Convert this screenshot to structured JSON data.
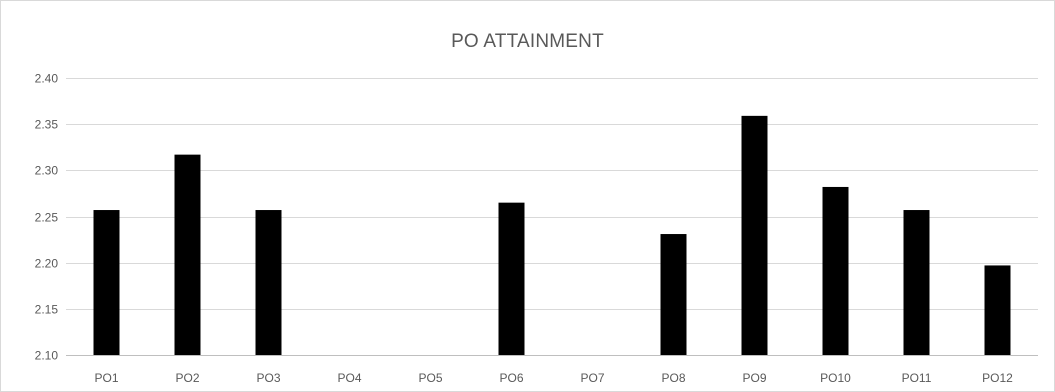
{
  "chart_data": {
    "type": "bar",
    "title": "PO ATTAINMENT",
    "xlabel": "",
    "ylabel": "",
    "categories": [
      "PO1",
      "PO2",
      "PO3",
      "PO4",
      "PO5",
      "PO6",
      "PO7",
      "PO8",
      "PO9",
      "PO10",
      "PO11",
      "PO12"
    ],
    "values": [
      2.257,
      2.317,
      2.257,
      null,
      null,
      2.265,
      null,
      2.231,
      2.359,
      2.282,
      2.257,
      2.197
    ],
    "ylim": [
      2.1,
      2.4
    ],
    "yticks": [
      "2.10",
      "2.15",
      "2.20",
      "2.25",
      "2.30",
      "2.35",
      "2.40"
    ],
    "grid": true,
    "legend": "none",
    "colors": {
      "bar": "#000000",
      "grid": "#d9d9d9",
      "axis": "#bfbfbf",
      "text": "#595959"
    }
  }
}
